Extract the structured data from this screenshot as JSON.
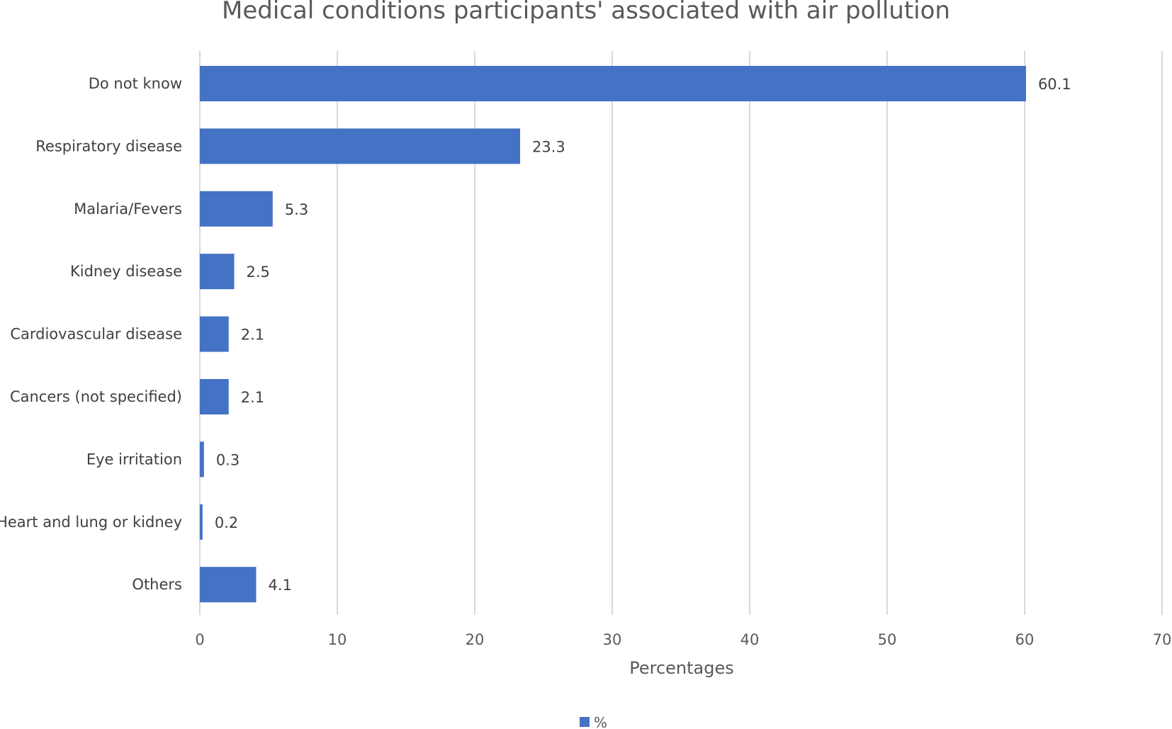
{
  "chart_data": {
    "type": "bar",
    "orientation": "horizontal",
    "title": "Medical conditions participants' associated with air pollution",
    "xlabel": "Percentages",
    "ylabel": "",
    "xlim": [
      0,
      70
    ],
    "x_ticks": [
      0,
      10,
      20,
      30,
      40,
      50,
      60,
      70
    ],
    "grid": true,
    "legend_position": "bottom",
    "categories": [
      "Do not know",
      "Respiratory disease",
      "Malaria/Fevers",
      "Kidney disease",
      "Cardiovascular disease",
      "Cancers (not specified)",
      "Eye irritation",
      "Heart and lung or kidney",
      "Others"
    ],
    "series": [
      {
        "name": "%",
        "color": "#4472c4",
        "values": [
          60.1,
          23.3,
          5.3,
          2.5,
          2.1,
          2.1,
          0.3,
          0.2,
          4.1
        ],
        "labels": [
          "60.1",
          "23.3",
          "5.3",
          "2.5",
          "2.1",
          "2.1",
          "0.3",
          "0.2",
          "4.1"
        ]
      }
    ]
  }
}
